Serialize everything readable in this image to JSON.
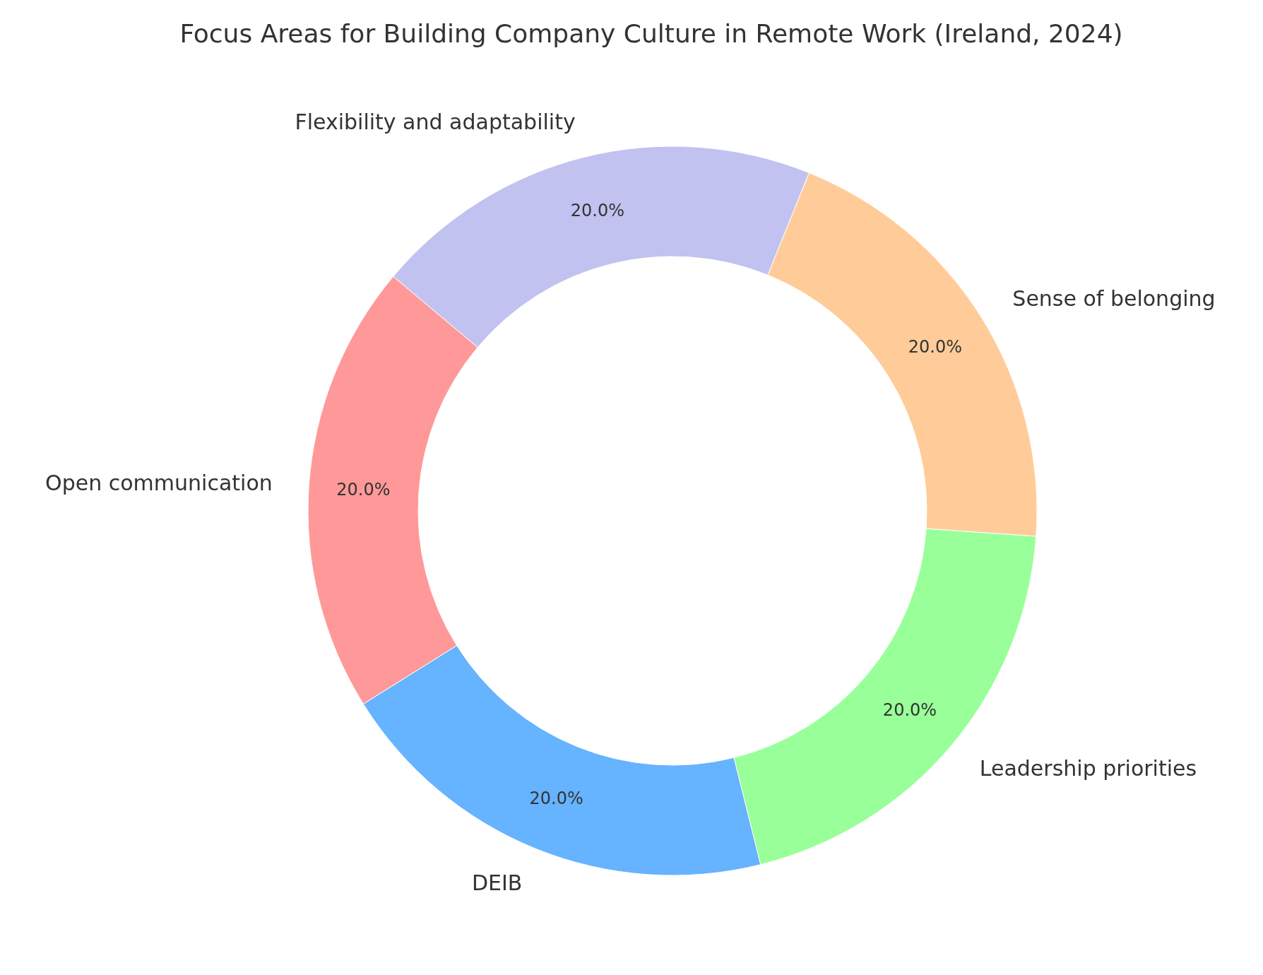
{
  "chart_data": {
    "type": "donut",
    "title": "Focus Areas for Building Company Culture in Remote Work (Ireland, 2024)",
    "categories": [
      "Open communication",
      "DEIB",
      "Leadership priorities",
      "Sense of belonging",
      "Flexibility and adaptability"
    ],
    "values": [
      20,
      20,
      20,
      20,
      20
    ],
    "colors": [
      "#ff9999",
      "#66b3ff",
      "#99ff99",
      "#ffcc99",
      "#c2c2f0"
    ],
    "value_labels": [
      "20.0%",
      "20.0%",
      "20.0%",
      "20.0%",
      "20.0%"
    ]
  }
}
